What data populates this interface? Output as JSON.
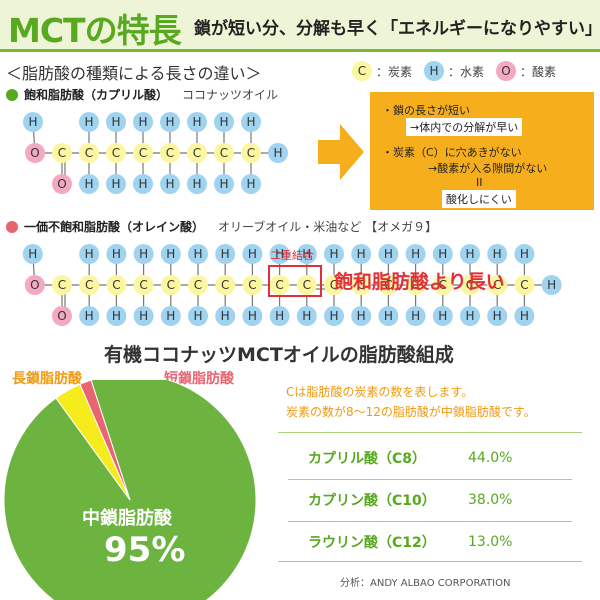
{
  "header": {
    "title": "MCTの特長",
    "subtitle": "鎖が短い分、分解も早く「エネルギーになりやすい」"
  },
  "types_heading": "＜脂肪酸の種類による長さの違い＞",
  "legend": {
    "c": {
      "symbol": "C",
      "label": "：炭素",
      "color": "#fcf6a0"
    },
    "h": {
      "symbol": "H",
      "label": "：水素",
      "color": "#9fd3ef"
    },
    "o": {
      "symbol": "O",
      "label": "：酸素",
      "color": "#f4a9c3"
    }
  },
  "saturated": {
    "name": "飽和脂肪酸（カプリル酸）",
    "example": "ココナッツオイル",
    "bullet_color": "#58a820"
  },
  "note": {
    "line1": "・鎖の長さが短い",
    "line2": "→体内での分解が早い",
    "line3": "・炭素（C）に穴あきがない",
    "line4": "→酸素が入る隙間がない",
    "line5": "II",
    "line6": "酸化しにくい"
  },
  "unsaturated": {
    "name": "一価不飽和脂肪酸（オレイン酸）",
    "example": "オリーブオイル・米油など 【オメガ９】",
    "bullet_color": "#e86470",
    "double_bond_label": "二重結合",
    "longer_label": "飽和脂肪酸より長い"
  },
  "chart_data": {
    "type": "pie",
    "title": "有機ココナッツMCTオイルの脂肪酸組成",
    "slices": [
      {
        "label": "中鎖脂肪酸",
        "value": 95,
        "color": "#6cb33f"
      },
      {
        "label": "長鎖脂肪酸",
        "value": 3.5,
        "color": "#f7ec1b"
      },
      {
        "label": "短鎖脂肪酸",
        "value": 1.5,
        "color": "#e86470"
      }
    ],
    "center_label": "中鎖脂肪酸",
    "center_value": "95%",
    "label_long": "長鎖脂肪酸",
    "label_short": "短鎖脂肪酸"
  },
  "explain": {
    "line1": "Cは脂肪酸の炭素の数を表します。",
    "line2": "炭素の数が8～12の脂肪酸が中鎖脂肪酸です。"
  },
  "table": [
    {
      "name": "カプリル酸（C8）",
      "value": "44.0%"
    },
    {
      "name": "カプリン酸（C10）",
      "value": "38.0%"
    },
    {
      "name": "ラウリン酸（C12）",
      "value": "13.0%"
    }
  ],
  "source": "分析：ANDY ALBAO CORPORATION"
}
